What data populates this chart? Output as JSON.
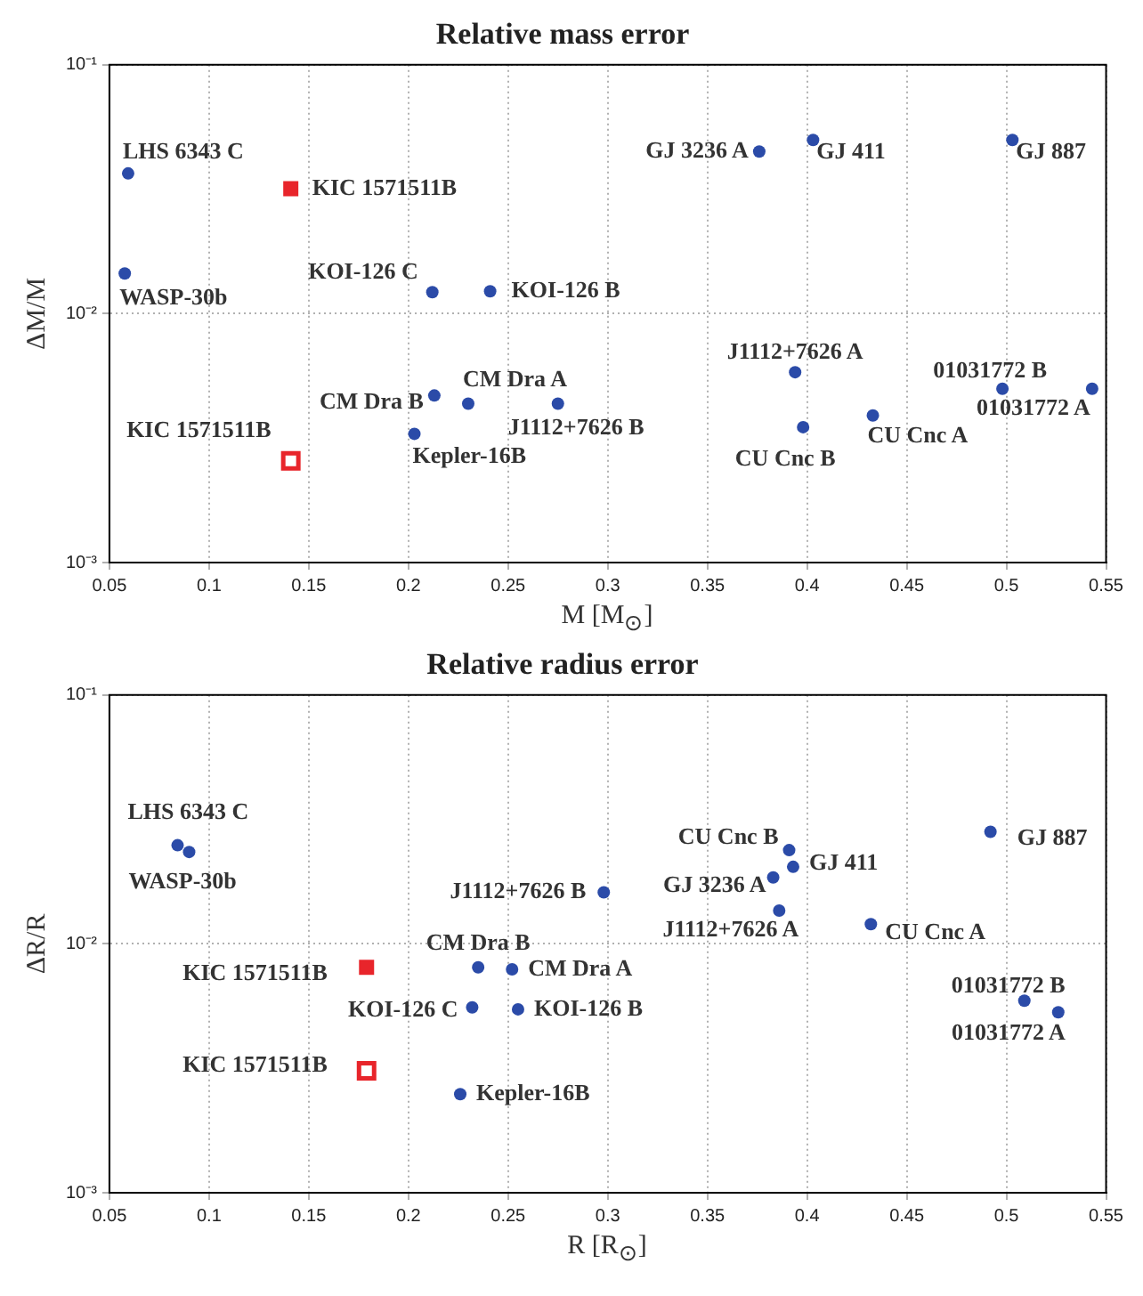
{
  "chart_data": [
    {
      "type": "scatter",
      "title": "Relative mass error",
      "xlabel": "M [M$_{⊙}$]",
      "ylabel": "ΔM/M",
      "log": "y",
      "grid": true,
      "legend": false,
      "xlim": [
        0.05,
        0.55
      ],
      "xticks": [
        0.05,
        0.1,
        0.15,
        0.2,
        0.25,
        0.3,
        0.35,
        0.4,
        0.45,
        0.5,
        0.55
      ],
      "ylim": [
        0.001,
        0.1
      ],
      "yticks": [
        {
          "value": 0.001,
          "label": "10⁻³"
        },
        {
          "value": 0.01,
          "label": "10⁻²"
        },
        {
          "value": 0.1,
          "label": "10⁻¹"
        }
      ],
      "series": [
        {
          "color": "#2b4ba8",
          "marker": "circle",
          "x": [
            0.0594,
            0.0577,
            0.212,
            0.241,
            0.213,
            0.23,
            0.275,
            0.203,
            0.376,
            0.403,
            0.503,
            0.394,
            0.498,
            0.543,
            0.398,
            0.433
          ],
          "values": [
            0.0366,
            0.0145,
            0.0122,
            0.0123,
            0.00469,
            0.00435,
            0.00435,
            0.00329,
            0.0448,
            0.0499,
            0.0499,
            0.00582,
            0.00499,
            0.00499,
            0.0035,
            0.0039
          ]
        },
        {
          "color": "#e8252b",
          "marker": "square",
          "x": [
            0.141
          ],
          "values": [
            0.0318
          ]
        },
        {
          "color": "#e8252b",
          "marker": "square",
          "x": [
            0.141
          ],
          "values": [
            0.00256
          ]
        }
      ],
      "annotations": [
        {
          "text": "LHS 6343 C",
          "x": 0.0594,
          "y": 0.0366
        },
        {
          "text": "KIC 1571511B",
          "x": 0.141,
          "y": 0.0318
        },
        {
          "text": "WASP-30b",
          "x": 0.0577,
          "y": 0.0145
        },
        {
          "text": "KOI-126 C",
          "x": 0.212,
          "y": 0.0122
        },
        {
          "text": "KOI-126 B",
          "x": 0.241,
          "y": 0.0123
        },
        {
          "text": "CM Dra B",
          "x": 0.213,
          "y": 0.00469
        },
        {
          "text": "CM Dra A",
          "x": 0.23,
          "y": 0.00435
        },
        {
          "text": "J1112+7626 B",
          "x": 0.275,
          "y": 0.00435
        },
        {
          "text": "Kepler-16B",
          "x": 0.203,
          "y": 0.00329
        },
        {
          "text": "KIC 1571511B",
          "x": 0.141,
          "y": 0.00256
        },
        {
          "text": "GJ 3236 A",
          "x": 0.376,
          "y": 0.0448
        },
        {
          "text": "GJ 411",
          "x": 0.403,
          "y": 0.0499
        },
        {
          "text": "GJ 887",
          "x": 0.503,
          "y": 0.0499
        },
        {
          "text": "J1112+7626 A",
          "x": 0.394,
          "y": 0.00582
        },
        {
          "text": "01031772 B",
          "x": 0.498,
          "y": 0.00499
        },
        {
          "text": "01031772 A",
          "x": 0.543,
          "y": 0.00499
        },
        {
          "text": "CU Cnc B",
          "x": 0.398,
          "y": 0.0035
        },
        {
          "text": "CU Cnc A",
          "x": 0.433,
          "y": 0.0039
        }
      ]
    },
    {
      "type": "scatter",
      "title": "Relative radius error",
      "xlabel": "R [R$_{⊙}$]",
      "ylabel": "ΔR/R",
      "log": "y",
      "grid": true,
      "legend": false,
      "xlim": [
        0.05,
        0.55
      ],
      "xticks": [
        0.05,
        0.1,
        0.15,
        0.2,
        0.25,
        0.3,
        0.35,
        0.4,
        0.45,
        0.5,
        0.55
      ],
      "ylim": [
        0.001,
        0.1
      ],
      "yticks": [
        {
          "value": 0.001,
          "label": "10⁻³"
        },
        {
          "value": 0.01,
          "label": "10⁻²"
        },
        {
          "value": 0.1,
          "label": "10⁻¹"
        }
      ],
      "series": [
        {
          "color": "#2b4ba8",
          "marker": "circle",
          "x": [
            0.0842,
            0.09,
            0.235,
            0.252,
            0.232,
            0.255,
            0.226,
            0.298,
            0.391,
            0.393,
            0.383,
            0.386,
            0.432,
            0.492,
            0.509,
            0.526
          ],
          "values": [
            0.0249,
            0.0234,
            0.00805,
            0.0079,
            0.00556,
            0.00546,
            0.00249,
            0.0161,
            0.0238,
            0.0204,
            0.0185,
            0.0136,
            0.012,
            0.0282,
            0.00591,
            0.00531
          ]
        },
        {
          "color": "#e8252b",
          "marker": "square",
          "x": [
            0.179
          ],
          "values": [
            0.00805
          ]
        },
        {
          "color": "#e8252b",
          "marker": "square",
          "x": [
            0.179
          ],
          "values": [
            0.00309
          ]
        }
      ],
      "annotations": [
        {
          "text": "LHS 6343 C",
          "x": 0.0842,
          "y": 0.0249
        },
        {
          "text": "WASP-30b",
          "x": 0.09,
          "y": 0.0234
        },
        {
          "text": "KIC 1571511B",
          "x": 0.179,
          "y": 0.00805
        },
        {
          "text": "CM Dra B",
          "x": 0.235,
          "y": 0.00805
        },
        {
          "text": "CM Dra A",
          "x": 0.252,
          "y": 0.0079
        },
        {
          "text": "KOI-126 C",
          "x": 0.232,
          "y": 0.00556
        },
        {
          "text": "KOI-126 B",
          "x": 0.255,
          "y": 0.00546
        },
        {
          "text": "KIC 1571511B",
          "x": 0.179,
          "y": 0.00309
        },
        {
          "text": "Kepler-16B",
          "x": 0.226,
          "y": 0.00249
        },
        {
          "text": "J1112+7626 B",
          "x": 0.298,
          "y": 0.0161
        },
        {
          "text": "CU Cnc B",
          "x": 0.391,
          "y": 0.0238
        },
        {
          "text": "GJ 411",
          "x": 0.393,
          "y": 0.0204
        },
        {
          "text": "GJ 3236 A",
          "x": 0.383,
          "y": 0.0185
        },
        {
          "text": "J1112+7626 A",
          "x": 0.386,
          "y": 0.0136
        },
        {
          "text": "CU Cnc A",
          "x": 0.432,
          "y": 0.012
        },
        {
          "text": "GJ 887",
          "x": 0.492,
          "y": 0.0282
        },
        {
          "text": "01031772 B",
          "x": 0.509,
          "y": 0.00591
        },
        {
          "text": "01031772 A",
          "x": 0.526,
          "y": 0.00531
        }
      ]
    }
  ]
}
